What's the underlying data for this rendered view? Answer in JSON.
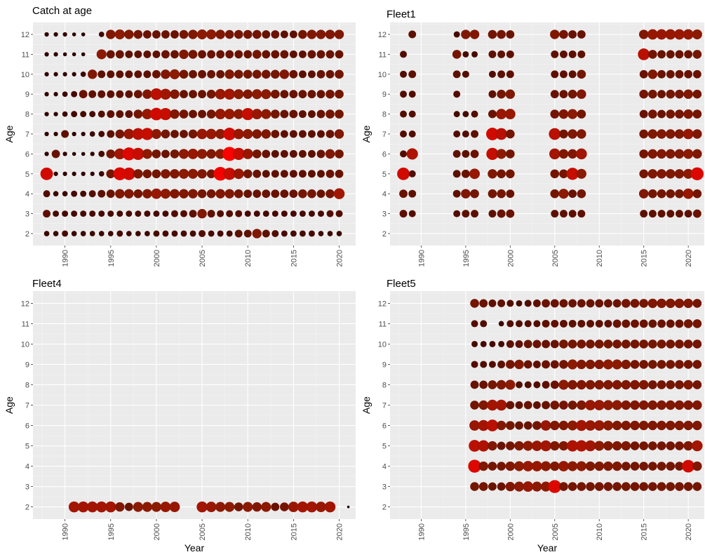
{
  "figure": {
    "xlabel": "Year",
    "ylabel": "Age"
  },
  "colors": {
    "panel_bg": "#EBEBEB",
    "grid_major": "#FFFFFF",
    "grid_minor": "#F4F4F4",
    "tick_text": "#4D4D4D",
    "low": "#1A0000",
    "mid": "#8B1A00",
    "high": "#FF0000"
  },
  "chart_data": [
    {
      "type": "scatter",
      "title": "Catch at age",
      "xlabel": "",
      "ylabel": "Age",
      "xlim": [
        1986.5,
        2021.8
      ],
      "ylim": [
        1.4,
        12.6
      ],
      "xticks": [
        "1990",
        "1995",
        "2000",
        "2005",
        "2010",
        "2015",
        "2020"
      ],
      "yticks": [
        "2",
        "3",
        "4",
        "5",
        "6",
        "7",
        "8",
        "9",
        "10",
        "11",
        "12"
      ],
      "years": [
        1988,
        1989,
        1990,
        1991,
        1992,
        1993,
        1994,
        1995,
        1996,
        1997,
        1998,
        1999,
        2000,
        2001,
        2002,
        2003,
        2004,
        2005,
        2006,
        2007,
        2008,
        2009,
        2010,
        2011,
        2012,
        2013,
        2014,
        2015,
        2016,
        2017,
        2018,
        2019,
        2020
      ],
      "ages": [
        12,
        11,
        10,
        9,
        8,
        7,
        6,
        5,
        4,
        3,
        2
      ],
      "values": [
        [
          0.1,
          0.1,
          0.1,
          0.08,
          0.08,
          0,
          0.15,
          0.45,
          0.5,
          0.45,
          0.4,
          0.35,
          0.35,
          0.35,
          0.35,
          0.4,
          0.45,
          0.5,
          0.5,
          0.45,
          0.4,
          0.4,
          0.4,
          0.4,
          0.35,
          0.35,
          0.3,
          0.3,
          0.4,
          0.45,
          0.45,
          0.45,
          0.45
        ],
        [
          0.1,
          0.1,
          0.08,
          0.08,
          0.08,
          0,
          0.5,
          0.35,
          0.35,
          0.3,
          0.3,
          0.3,
          0.3,
          0.35,
          0.35,
          0.45,
          0.4,
          0.35,
          0.35,
          0.35,
          0.35,
          0.35,
          0.35,
          0.4,
          0.35,
          0.35,
          0.35,
          0.3,
          0.3,
          0.35,
          0.35,
          0.35,
          0.35
        ],
        [
          0.1,
          0.1,
          0.1,
          0.1,
          0.15,
          0.45,
          0.3,
          0.3,
          0.3,
          0.3,
          0.3,
          0.3,
          0.35,
          0.45,
          0.5,
          0.4,
          0.35,
          0.35,
          0.35,
          0.35,
          0.45,
          0.4,
          0.4,
          0.4,
          0.4,
          0.4,
          0.45,
          0.35,
          0.3,
          0.3,
          0.35,
          0.35,
          0.4
        ],
        [
          0.1,
          0.1,
          0.15,
          0.2,
          0.35,
          0.3,
          0.3,
          0.3,
          0.3,
          0.3,
          0.35,
          0.45,
          0.7,
          0.6,
          0.45,
          0.35,
          0.35,
          0.35,
          0.4,
          0.55,
          0.6,
          0.5,
          0.45,
          0.5,
          0.5,
          0.4,
          0.35,
          0.35,
          0.35,
          0.35,
          0.35,
          0.4,
          0.4
        ],
        [
          0.1,
          0.1,
          0.15,
          0.2,
          0.2,
          0.2,
          0.25,
          0.3,
          0.3,
          0.3,
          0.4,
          0.55,
          0.8,
          0.75,
          0.45,
          0.4,
          0.35,
          0.35,
          0.4,
          0.55,
          0.55,
          0.5,
          0.75,
          0.55,
          0.5,
          0.4,
          0.35,
          0.35,
          0.3,
          0.3,
          0.35,
          0.4,
          0.4
        ],
        [
          0.1,
          0.1,
          0.3,
          0.1,
          0.1,
          0.15,
          0.2,
          0.3,
          0.4,
          0.55,
          0.7,
          0.75,
          0.5,
          0.4,
          0.35,
          0.35,
          0.4,
          0.55,
          0.55,
          0.5,
          0.8,
          0.55,
          0.5,
          0.45,
          0.45,
          0.35,
          0.3,
          0.3,
          0.3,
          0.3,
          0.3,
          0.35,
          0.45
        ],
        [
          0.1,
          0.35,
          0.1,
          0.08,
          0.08,
          0.1,
          0.2,
          0.4,
          0.6,
          0.85,
          0.75,
          0.5,
          0.4,
          0.35,
          0.4,
          0.5,
          0.55,
          0.5,
          0.45,
          0.5,
          1.0,
          0.75,
          0.55,
          0.4,
          0.35,
          0.3,
          0.3,
          0.3,
          0.3,
          0.3,
          0.35,
          0.45,
          0.4
        ],
        [
          0.8,
          0.1,
          0.1,
          0.1,
          0.1,
          0.1,
          0.15,
          0.4,
          0.85,
          0.8,
          0.45,
          0.4,
          0.4,
          0.45,
          0.45,
          0.5,
          0.5,
          0.45,
          0.4,
          0.95,
          0.75,
          0.55,
          0.4,
          0.35,
          0.3,
          0.3,
          0.3,
          0.3,
          0.3,
          0.3,
          0.3,
          0.35,
          0.35
        ],
        [
          0.25,
          0.15,
          0.15,
          0.2,
          0.2,
          0.25,
          0.3,
          0.35,
          0.45,
          0.45,
          0.4,
          0.45,
          0.55,
          0.5,
          0.45,
          0.45,
          0.45,
          0.4,
          0.4,
          0.45,
          0.45,
          0.4,
          0.35,
          0.35,
          0.35,
          0.35,
          0.35,
          0.35,
          0.4,
          0.4,
          0.35,
          0.4,
          0.6
        ],
        [
          0.3,
          0.2,
          0.2,
          0.2,
          0.2,
          0.2,
          0.2,
          0.2,
          0.2,
          0.2,
          0.2,
          0.2,
          0.2,
          0.2,
          0.25,
          0.25,
          0.3,
          0.45,
          0.3,
          0.25,
          0.25,
          0.25,
          0.2,
          0.2,
          0.2,
          0.2,
          0.2,
          0.2,
          0.2,
          0.2,
          0.2,
          0.25,
          0.25
        ],
        [
          0.15,
          0.15,
          0.2,
          0.15,
          0.15,
          0.15,
          0.15,
          0.15,
          0.2,
          0.15,
          0.15,
          0.15,
          0.2,
          0.2,
          0.2,
          0.2,
          0.2,
          0.25,
          0.2,
          0.2,
          0.2,
          0.3,
          0.3,
          0.45,
          0.3,
          0.25,
          0.2,
          0.2,
          0.2,
          0.2,
          0.15,
          0.15,
          0.15
        ]
      ]
    },
    {
      "type": "scatter",
      "title": "Fleet1",
      "xlabel": "",
      "ylabel": "Age",
      "xlim": [
        1986.5,
        2021.8
      ],
      "ylim": [
        1.4,
        12.6
      ],
      "xticks": [
        "1990",
        "1995",
        "2000",
        "2005",
        "2010",
        "2015",
        "2020"
      ],
      "yticks": [
        "2",
        "3",
        "4",
        "5",
        "6",
        "7",
        "8",
        "9",
        "10",
        "11",
        "12"
      ],
      "years": [
        1988,
        1989,
        1994,
        1995,
        1996,
        1998,
        1999,
        2000,
        2005,
        2006,
        2007,
        2008,
        2015,
        2016,
        2017,
        2018,
        2019,
        2020,
        2021
      ],
      "ages": [
        12,
        11,
        10,
        9,
        8,
        7,
        6,
        5,
        4,
        3
      ],
      "values": [
        [
          0,
          0.3,
          0.2,
          0.45,
          0.45,
          0.4,
          0.4,
          0.35,
          0.45,
          0.4,
          0.35,
          0.35,
          0.45,
          0.55,
          0.55,
          0.55,
          0.55,
          0.55,
          0.5
        ],
        [
          0.25,
          0,
          0.4,
          0.2,
          0.2,
          0.3,
          0.3,
          0.3,
          0.3,
          0.3,
          0.3,
          0.3,
          0.7,
          0.4,
          0.35,
          0.35,
          0.35,
          0.35,
          0.4
        ],
        [
          0.25,
          0.3,
          0.3,
          0.25,
          0,
          0.25,
          0.3,
          0.3,
          0.3,
          0.3,
          0.3,
          0.4,
          0.35,
          0.45,
          0.35,
          0.35,
          0.35,
          0.35,
          0.35
        ],
        [
          0.25,
          0.25,
          0.25,
          0,
          0,
          0.3,
          0.4,
          0.45,
          0.35,
          0.35,
          0.4,
          0.45,
          0.4,
          0.4,
          0.35,
          0.4,
          0.4,
          0.45,
          0.4
        ],
        [
          0.25,
          0.25,
          0.2,
          0.2,
          0.25,
          0.35,
          0.55,
          0.55,
          0.4,
          0.45,
          0.5,
          0.4,
          0.35,
          0.4,
          0.35,
          0.4,
          0.4,
          0.45,
          0.4
        ],
        [
          0.25,
          0.25,
          0.25,
          0.25,
          0.3,
          0.8,
          0.7,
          0.4,
          0.7,
          0.4,
          0.45,
          0.45,
          0.4,
          0.45,
          0.45,
          0.45,
          0.45,
          0.55,
          0.45
        ],
        [
          0.25,
          0.65,
          0.3,
          0.3,
          0.35,
          0.75,
          0.5,
          0.4,
          0.6,
          0.45,
          0.45,
          0.6,
          0.4,
          0.45,
          0.45,
          0.45,
          0.45,
          0.5,
          0.45
        ],
        [
          0.8,
          0.25,
          0.3,
          0.35,
          0.55,
          0.45,
          0.4,
          0.4,
          0.4,
          0.4,
          0.75,
          0.5,
          0.4,
          0.45,
          0.45,
          0.45,
          0.45,
          0.5,
          0.85
        ],
        [
          0.35,
          0.3,
          0.3,
          0.45,
          0.4,
          0.4,
          0.4,
          0.35,
          0.4,
          0.5,
          0.35,
          0.4,
          0.45,
          0.4,
          0.4,
          0.4,
          0.4,
          0.55,
          0.4
        ],
        [
          0.3,
          0.25,
          0.25,
          0.3,
          0.3,
          0.3,
          0.35,
          0.35,
          0.3,
          0.3,
          0.3,
          0.3,
          0.3,
          0.3,
          0.3,
          0.3,
          0.3,
          0.3,
          0.35
        ]
      ]
    },
    {
      "type": "scatter",
      "title": "Fleet4",
      "xlabel": "Year",
      "ylabel": "Age",
      "xlim": [
        1986.5,
        2021.8
      ],
      "ylim": [
        1.4,
        12.6
      ],
      "xticks": [
        "1990",
        "1995",
        "2000",
        "2005",
        "2010",
        "2015",
        "2020"
      ],
      "yticks": [
        "2",
        "3",
        "4",
        "5",
        "6",
        "7",
        "8",
        "9",
        "10",
        "11",
        "12"
      ],
      "years": [
        1991,
        1992,
        1993,
        1994,
        1995,
        1996,
        1997,
        1998,
        1999,
        2000,
        2001,
        2002,
        2005,
        2006,
        2007,
        2008,
        2009,
        2010,
        2011,
        2012,
        2013,
        2014,
        2015,
        2016,
        2017,
        2018,
        2019,
        2021
      ],
      "ages": [
        2
      ],
      "values": [
        [
          0.6,
          0.6,
          0.6,
          0.6,
          0.6,
          0.45,
          0.35,
          0.5,
          0.5,
          0.5,
          0.55,
          0.55,
          0.6,
          0.55,
          0.5,
          0.5,
          0.4,
          0.5,
          0.45,
          0.5,
          0.35,
          0.4,
          0.55,
          0.6,
          0.6,
          0.55,
          0.6,
          0.02
        ]
      ]
    },
    {
      "type": "scatter",
      "title": "Fleet5",
      "xlabel": "Year",
      "ylabel": "Age",
      "xlim": [
        1986.5,
        2021.8
      ],
      "ylim": [
        1.4,
        12.6
      ],
      "xticks": [
        "1990",
        "1995",
        "2000",
        "2005",
        "2010",
        "2015",
        "2020"
      ],
      "yticks": [
        "2",
        "3",
        "4",
        "5",
        "6",
        "7",
        "8",
        "9",
        "10",
        "11",
        "12"
      ],
      "years": [
        1996,
        1997,
        1998,
        1999,
        2000,
        2001,
        2002,
        2003,
        2004,
        2005,
        2006,
        2007,
        2008,
        2009,
        2010,
        2011,
        2012,
        2013,
        2014,
        2015,
        2016,
        2017,
        2018,
        2019,
        2020,
        2021
      ],
      "ages": [
        12,
        11,
        10,
        9,
        8,
        7,
        6,
        5,
        4,
        3
      ],
      "values": [
        [
          0.4,
          0.35,
          0.3,
          0.3,
          0.25,
          0.2,
          0.25,
          0.3,
          0.35,
          0.35,
          0.35,
          0.35,
          0.35,
          0.35,
          0.35,
          0.35,
          0.35,
          0.4,
          0.4,
          0.4,
          0.45,
          0.45,
          0.45,
          0.45,
          0.45,
          0.4
        ],
        [
          0.25,
          0.25,
          0,
          0.15,
          0.25,
          0.25,
          0.25,
          0.25,
          0.3,
          0.3,
          0.3,
          0.3,
          0.3,
          0.3,
          0.3,
          0.3,
          0.35,
          0.35,
          0.35,
          0.35,
          0.35,
          0.35,
          0.35,
          0.35,
          0.4,
          0.4
        ],
        [
          0.2,
          0.2,
          0.2,
          0.2,
          0.3,
          0.3,
          0.35,
          0.35,
          0.35,
          0.35,
          0.4,
          0.4,
          0.4,
          0.4,
          0.4,
          0.4,
          0.4,
          0.4,
          0.4,
          0.4,
          0.4,
          0.4,
          0.4,
          0.4,
          0.4,
          0.4
        ],
        [
          0.25,
          0.25,
          0.25,
          0.3,
          0.4,
          0.45,
          0.35,
          0.3,
          0.35,
          0.35,
          0.4,
          0.5,
          0.45,
          0.45,
          0.45,
          0.5,
          0.5,
          0.45,
          0.4,
          0.4,
          0.4,
          0.4,
          0.4,
          0.4,
          0.4,
          0.4
        ],
        [
          0.35,
          0.35,
          0.4,
          0.45,
          0.5,
          0.25,
          0.25,
          0.25,
          0.3,
          0.35,
          0.5,
          0.45,
          0.45,
          0.45,
          0.45,
          0.45,
          0.45,
          0.45,
          0.45,
          0.45,
          0.4,
          0.4,
          0.4,
          0.4,
          0.45,
          0.4
        ],
        [
          0.4,
          0.45,
          0.6,
          0.6,
          0.35,
          0.3,
          0.35,
          0.3,
          0.35,
          0.4,
          0.4,
          0.4,
          0.45,
          0.55,
          0.55,
          0.5,
          0.5,
          0.45,
          0.45,
          0.45,
          0.45,
          0.45,
          0.45,
          0.45,
          0.45,
          0.45
        ],
        [
          0.55,
          0.6,
          0.7,
          0.45,
          0.4,
          0.35,
          0.35,
          0.4,
          0.55,
          0.45,
          0.45,
          0.5,
          0.6,
          0.55,
          0.55,
          0.5,
          0.45,
          0.45,
          0.45,
          0.45,
          0.45,
          0.45,
          0.45,
          0.45,
          0.45,
          0.45
        ],
        [
          0.7,
          0.65,
          0.45,
          0.35,
          0.4,
          0.45,
          0.5,
          0.55,
          0.6,
          0.45,
          0.45,
          0.65,
          0.65,
          0.6,
          0.5,
          0.45,
          0.45,
          0.45,
          0.4,
          0.4,
          0.4,
          0.4,
          0.4,
          0.4,
          0.45,
          0.6
        ],
        [
          0.85,
          0.45,
          0.4,
          0.4,
          0.45,
          0.5,
          0.55,
          0.55,
          0.5,
          0.45,
          0.55,
          0.5,
          0.5,
          0.45,
          0.45,
          0.45,
          0.45,
          0.4,
          0.4,
          0.4,
          0.4,
          0.4,
          0.4,
          0.4,
          0.8,
          0.45
        ],
        [
          0.4,
          0.4,
          0.35,
          0.35,
          0.45,
          0.5,
          0.55,
          0.5,
          0.5,
          0.85,
          0.4,
          0.4,
          0.4,
          0.4,
          0.4,
          0.4,
          0.4,
          0.4,
          0.4,
          0.4,
          0.4,
          0.4,
          0.4,
          0.4,
          0.4,
          0.4
        ]
      ]
    }
  ]
}
